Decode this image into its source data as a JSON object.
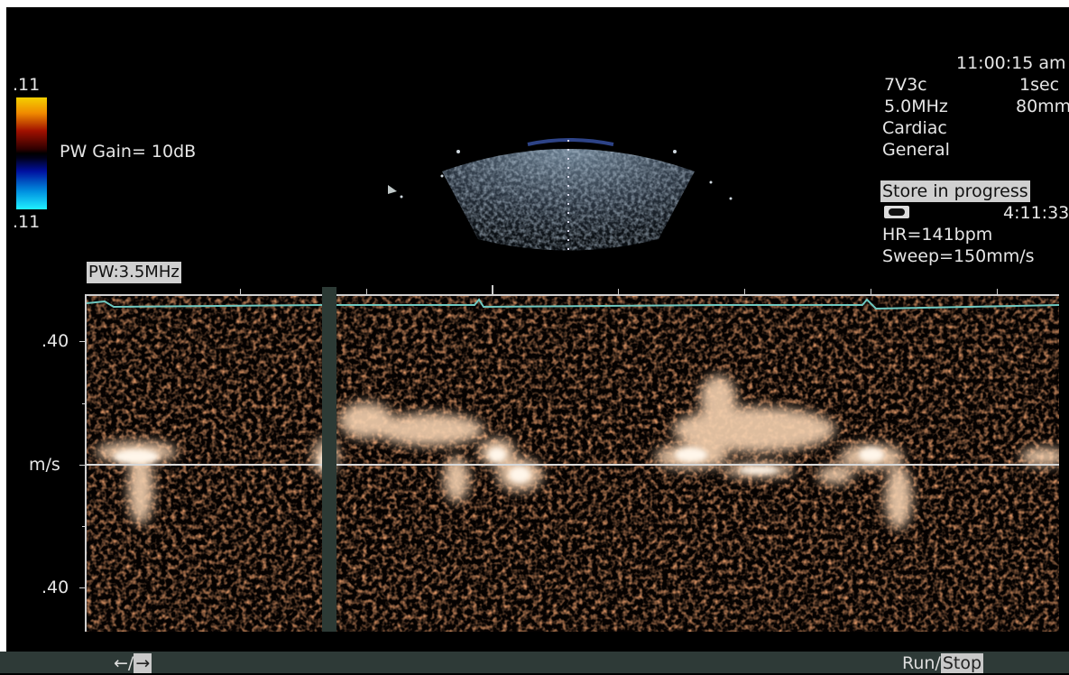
{
  "header": {
    "time": "11:00:15 am",
    "probe": "7V3c",
    "interval": "1sec",
    "frequency": "5.0MHz",
    "depth": "80mm",
    "exam": "Cardiac",
    "preset": "General",
    "store_status": "Store in progress",
    "tape_icon": "tape-icon",
    "tape_time": "4:11:33",
    "heart_rate": "HR=141bpm",
    "sweep": "Sweep=150mm/s"
  },
  "colorbar": {
    "top_label": ".11",
    "bottom_label": ".11"
  },
  "gain": "PW Gain=  10dB",
  "pw_label": "PW:3.5MHz",
  "axis": {
    "upper": ".40",
    "unit": "m/s",
    "lower": ".40"
  },
  "footer": {
    "arrows_left": "←/",
    "arrows_right": "→",
    "run": "Run/",
    "stop": "Stop"
  },
  "colors": {
    "spectrum": "#f0c8a0",
    "noise": "#b84a20",
    "ecg": "#6ec8c0",
    "baseline": "#d8d8d8"
  }
}
